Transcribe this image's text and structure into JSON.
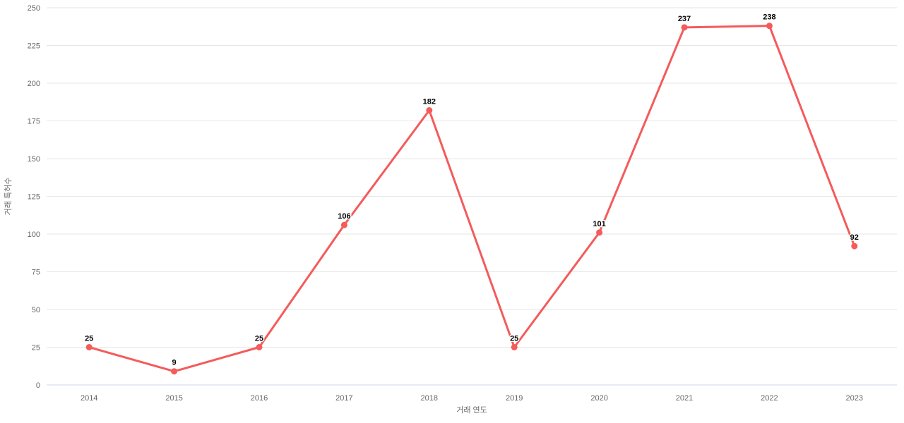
{
  "chart_data": {
    "type": "line",
    "categories": [
      "2014",
      "2015",
      "2016",
      "2017",
      "2018",
      "2019",
      "2020",
      "2021",
      "2022",
      "2023"
    ],
    "series": [
      {
        "name": "거래 특허수",
        "values": [
          25,
          9,
          25,
          106,
          182,
          25,
          101,
          237,
          238,
          92
        ],
        "color": "#f45b5b"
      }
    ],
    "title": "",
    "xlabel": "거래 연도",
    "ylabel": "거래 특허수",
    "ylim": [
      0,
      250
    ],
    "yticks": [
      0,
      25,
      50,
      75,
      100,
      125,
      150,
      175,
      200,
      225,
      250
    ],
    "grid": true,
    "legend_position": "none",
    "data_labels_visible": true,
    "colors": {
      "background": "#ffffff",
      "gridline": "#e6e6e6",
      "axis_line": "#ccd6eb",
      "tick_label": "#666666",
      "axis_title": "#666666",
      "data_label": "#000000"
    }
  }
}
